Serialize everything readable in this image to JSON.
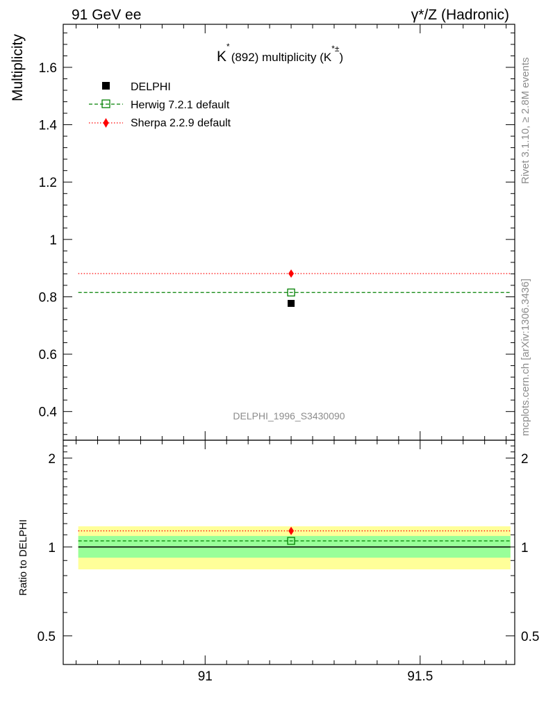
{
  "header": {
    "left": "91 GeV ee",
    "right": "γ*/Z (Hadronic)"
  },
  "side": {
    "rivet": "Rivet 3.1.10, ≥ 2.8M events",
    "mcplots": "mcplots.cern.ch [arXiv:1306.3436]"
  },
  "colors": {
    "data": "#000000",
    "herwig": "#008000",
    "sherpa": "#ff0000",
    "band_inner": "#99ff99",
    "band_outer": "#ffff99"
  },
  "chart_data": [
    {
      "type": "scatter",
      "title_main": "K",
      "title_sup": "*",
      "title_rest": "(892) multiplicity (K",
      "title_rest_sup": "*±",
      "title_close": ")",
      "ylabel": "Multiplicity",
      "xlim": [
        90.67,
        91.72
      ],
      "ylim": [
        0.3,
        1.75
      ],
      "yticks": [
        0.4,
        0.6,
        0.8,
        1.0,
        1.2,
        1.4,
        1.6
      ],
      "ytick_labels": [
        "0.4",
        "0.6",
        "0.8",
        "1",
        "1.2",
        "1.4",
        "1.6"
      ],
      "watermark": "DELPHI_1996_S3430090",
      "legend_position": "top-left",
      "series": [
        {
          "name": "DELPHI",
          "style": "square-marker",
          "x": [
            91.2
          ],
          "y": [
            0.777
          ]
        },
        {
          "name": "Herwig 7.2.1 default",
          "style": "dashed-open-square",
          "x": [
            91.2
          ],
          "y": [
            0.815
          ]
        },
        {
          "name": "Sherpa 2.2.9 default",
          "style": "dotted-diamond",
          "x": [
            91.2
          ],
          "y": [
            0.881
          ]
        }
      ]
    },
    {
      "type": "scatter",
      "ylabel": "Ratio to DELPHI",
      "xlim": [
        90.67,
        91.72
      ],
      "ylim": [
        0.4,
        2.3
      ],
      "yscale": "log",
      "yticks": [
        0.5,
        1,
        2
      ],
      "ytick_labels": [
        "0.5",
        "1",
        "2"
      ],
      "xticks": [
        91,
        91.5
      ],
      "xtick_labels": [
        "91",
        "91.5"
      ],
      "bands": {
        "inner": [
          0.92,
          1.09
        ],
        "outer": [
          0.84,
          1.175
        ]
      },
      "series": [
        {
          "name": "Herwig 7.2.1 default",
          "x": [
            91.2
          ],
          "y": [
            1.049
          ]
        },
        {
          "name": "Sherpa 2.2.9 default",
          "x": [
            91.2
          ],
          "y": [
            1.134
          ]
        }
      ]
    }
  ]
}
